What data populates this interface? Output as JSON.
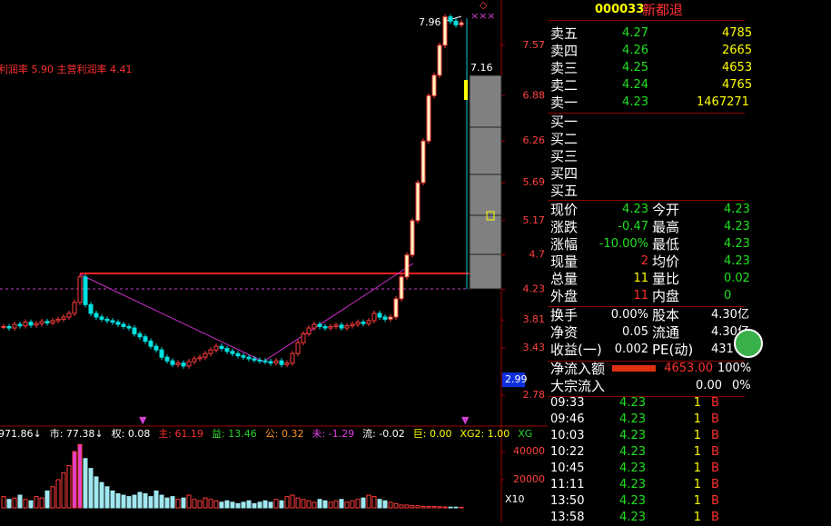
{
  "header": {
    "code": "000033",
    "name": "新都退"
  },
  "order_book": {
    "sell": [
      {
        "label": "卖五",
        "price": "4.27",
        "volume": "4785"
      },
      {
        "label": "卖四",
        "price": "4.26",
        "volume": "2665"
      },
      {
        "label": "卖三",
        "price": "4.25",
        "volume": "4653"
      },
      {
        "label": "卖二",
        "price": "4.24",
        "volume": "4765"
      },
      {
        "label": "卖一",
        "price": "4.23",
        "volume": "1467271"
      }
    ],
    "buy": [
      {
        "label": "买一"
      },
      {
        "label": "买二"
      },
      {
        "label": "买三"
      },
      {
        "label": "买四"
      },
      {
        "label": "买五"
      }
    ]
  },
  "quote": [
    {
      "label": "现价",
      "value": "4.23",
      "label2": "今开",
      "value2": "4.23"
    },
    {
      "label": "涨跌",
      "value": "-0.47",
      "label2": "最高",
      "value2": "4.23"
    },
    {
      "label": "涨幅",
      "value": "-10.00%",
      "label2": "最低",
      "value2": "4.23"
    },
    {
      "label": "现量",
      "value": "2",
      "label2": "均价",
      "value2": "4.23"
    },
    {
      "label": "总量",
      "value": "11",
      "label2": "量比",
      "value2": "0.02"
    },
    {
      "label": "外盘",
      "value": "11",
      "label2": "内盘",
      "value2": "0"
    }
  ],
  "fund_info": [
    {
      "label": "换手",
      "value": "0.00%",
      "label2": "股本",
      "value2": "4.30亿"
    },
    {
      "label": "净资",
      "value": "0.05",
      "label2": "流通",
      "value2": "4.30亿"
    },
    {
      "label": "收益(一)",
      "value": "0.002",
      "label2": "PE(动)",
      "value2": "431"
    }
  ],
  "flow": [
    {
      "label": "净流入额",
      "value": "4653.00",
      "pct": "100%"
    },
    {
      "label": "大宗流入",
      "value": "0.00",
      "pct": "0%"
    }
  ],
  "trades": [
    {
      "time": "09:33",
      "price": "4.23",
      "volume": "1",
      "side": "B"
    },
    {
      "time": "09:46",
      "price": "4.23",
      "volume": "1",
      "side": "B"
    },
    {
      "time": "10:03",
      "price": "4.23",
      "volume": "1",
      "side": "B"
    },
    {
      "time": "10:22",
      "price": "4.23",
      "volume": "1",
      "side": "B"
    },
    {
      "time": "10:45",
      "price": "4.23",
      "volume": "1",
      "side": "B"
    },
    {
      "time": "11:11",
      "price": "4.23",
      "volume": "1",
      "side": "B"
    },
    {
      "time": "13:50",
      "price": "4.23",
      "volume": "1",
      "side": "B"
    },
    {
      "time": "13:58",
      "price": "4.23",
      "volume": "1",
      "side": "B"
    }
  ],
  "chart": {
    "note": "利润率 5.90 主营利润率 4.41",
    "high_label": "7.96",
    "mark_label": "7.16",
    "price_tag": "2.99",
    "vol_scale": "X10",
    "ylim": [
      2.37,
      8.19
    ],
    "yticks": [
      7.57,
      6.88,
      6.26,
      5.69,
      5.17,
      4.7,
      4.23,
      3.81,
      3.43,
      2.78
    ],
    "vol_ylim": [
      0,
      51000
    ],
    "vol_ticks": [
      40000,
      20000
    ],
    "indicators": [
      "971.86↓",
      "市: 77.38↓",
      "权: 0.08",
      "主: 61.19",
      "益: 13.46",
      "公: 0.32",
      "未: -1.29",
      "流: -0.02",
      "巨: 0.00",
      "XG2: 1.00",
      "XG"
    ],
    "closes": [
      3.72,
      3.7,
      3.75,
      3.73,
      3.78,
      3.74,
      3.76,
      3.79,
      3.77,
      3.8,
      3.82,
      3.85,
      3.9,
      4.05,
      4.4,
      4.02,
      3.9,
      3.85,
      3.82,
      3.8,
      3.78,
      3.75,
      3.72,
      3.7,
      3.62,
      3.58,
      3.52,
      3.45,
      3.4,
      3.3,
      3.25,
      3.2,
      3.22,
      3.18,
      3.24,
      3.28,
      3.3,
      3.35,
      3.4,
      3.45,
      3.42,
      3.38,
      3.35,
      3.32,
      3.3,
      3.28,
      3.26,
      3.25,
      3.24,
      3.22,
      3.25,
      3.2,
      3.22,
      3.35,
      3.5,
      3.62,
      3.7,
      3.75,
      3.72,
      3.7,
      3.72,
      3.74,
      3.7,
      3.73,
      3.75,
      3.78,
      3.76,
      3.8,
      3.9,
      3.85,
      3.82,
      3.85,
      4.1,
      4.4,
      4.7,
      5.17,
      5.69,
      6.26,
      6.88,
      7.16,
      7.57,
      7.96,
      7.9,
      7.85,
      7.88
    ],
    "volumes": [
      8000,
      6000,
      7000,
      9000,
      6000,
      5000,
      8000,
      7000,
      12000,
      15000,
      20000,
      25000,
      30000,
      40000,
      45000,
      35000,
      28000,
      22000,
      18000,
      15000,
      12000,
      10000,
      9000,
      8000,
      9000,
      11000,
      10000,
      8000,
      12000,
      9000,
      7000,
      8000,
      6000,
      7000,
      9000,
      6000,
      5000,
      7000,
      6000,
      5000,
      4000,
      5000,
      4000,
      3000,
      4000,
      5000,
      3000,
      4000,
      5000,
      4000,
      6000,
      5000,
      8000,
      9000,
      7000,
      6000,
      5000,
      4000,
      6000,
      5000,
      4000,
      5000,
      6000,
      4000,
      5000,
      6000,
      7000,
      9000,
      8000,
      6000,
      5000,
      4000,
      3000,
      2000,
      2000,
      1500,
      1500,
      1000,
      1000,
      1000,
      800,
      600,
      500,
      500,
      400
    ]
  }
}
